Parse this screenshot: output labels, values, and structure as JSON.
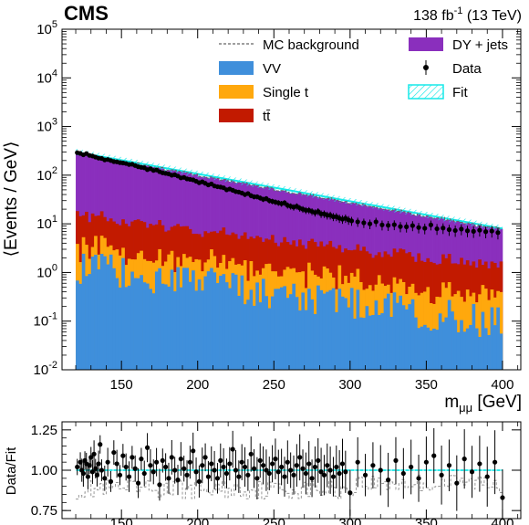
{
  "header": {
    "experiment": "CMS",
    "lumi_prefix": "138 fb",
    "lumi_exp": "-1",
    "lumi_suffix": " (13 TeV)"
  },
  "colors": {
    "dy": "#8a2fbd",
    "ttbar": "#c21a00",
    "single_t": "#ffa80d",
    "vv": "#3f8fdb",
    "fit": "#16e8e8",
    "mc_line": "#666666",
    "data": "#000000"
  },
  "legend": [
    {
      "key": "mc",
      "label": "MC background",
      "style": "dashed-line"
    },
    {
      "key": "dy",
      "label": "DY + jets",
      "style": "fill"
    },
    {
      "key": "vv",
      "label": "VV",
      "style": "fill"
    },
    {
      "key": "data",
      "label": "Data",
      "style": "marker"
    },
    {
      "key": "single_t",
      "label": "Single t",
      "style": "fill"
    },
    {
      "key": "fit",
      "label": "Fit",
      "style": "hatch"
    },
    {
      "key": "ttbar",
      "label": "tt̄",
      "style": "fill"
    }
  ],
  "chart_data": [
    {
      "type": "area",
      "subtype": "stacked-histogram",
      "x_tick_labels": [
        "150",
        "200",
        "250",
        "300",
        "350",
        "400"
      ],
      "y_tick_labels": [
        "10",
        "10",
        "10",
        "10",
        "10",
        "10",
        "10",
        "10"
      ],
      "y_tick_exponents": [
        "-2",
        "-1",
        "0",
        "1",
        "2",
        "3",
        "4",
        "5"
      ],
      "xlabel": "m",
      "xlabel_sub": "μμ",
      "xlabel_unit": " [GeV]",
      "ylabel": "⟨Events / GeV⟩",
      "xlim": [
        111,
        412
      ],
      "ylim": [
        0.01,
        100000
      ],
      "log_y": true,
      "bin_range": [
        120,
        400
      ],
      "bin_width": 2,
      "trends": {
        "dy": {
          "at_120": 270,
          "at_400": 6.2
        },
        "ttbar": {
          "at_120": 11,
          "at_400": 1.0
        },
        "single_t": {
          "at_120": 2.0,
          "at_400": 0.2
        },
        "vv": {
          "at_120": 1.3,
          "at_400": 0.09
        },
        "mc_total": {
          "at_120": 285,
          "at_400": 7.2
        }
      },
      "fit": {
        "x": [
          120,
          400
        ],
        "y": [
          300,
          8
        ]
      },
      "data_points": [
        [
          121,
          290
        ],
        [
          123,
          280
        ],
        [
          125,
          262
        ],
        [
          127,
          278
        ],
        [
          129,
          255
        ],
        [
          131,
          248
        ],
        [
          133,
          235
        ],
        [
          135,
          224
        ],
        [
          137,
          221
        ],
        [
          139,
          206
        ],
        [
          141,
          210
        ],
        [
          143,
          200
        ],
        [
          145,
          190
        ],
        [
          147,
          188
        ],
        [
          149,
          181
        ],
        [
          151,
          178
        ],
        [
          153,
          174
        ],
        [
          155,
          166
        ],
        [
          157,
          168
        ],
        [
          159,
          158
        ],
        [
          161,
          149
        ],
        [
          163,
          145
        ],
        [
          165,
          142
        ],
        [
          167,
          130
        ],
        [
          169,
          136
        ],
        [
          171,
          125
        ],
        [
          173,
          128
        ],
        [
          175,
          118
        ],
        [
          177,
          112
        ],
        [
          179,
          109
        ],
        [
          181,
          106
        ],
        [
          183,
          100
        ],
        [
          185,
          102
        ],
        [
          187,
          96
        ],
        [
          189,
          88
        ],
        [
          191,
          90
        ],
        [
          193,
          84
        ],
        [
          195,
          82
        ],
        [
          197,
          80
        ],
        [
          199,
          75
        ],
        [
          201,
          70
        ],
        [
          203,
          73
        ],
        [
          205,
          68
        ],
        [
          207,
          63
        ],
        [
          209,
          66
        ],
        [
          211,
          60
        ],
        [
          213,
          58
        ],
        [
          215,
          57
        ],
        [
          217,
          55
        ],
        [
          219,
          50
        ],
        [
          221,
          52
        ],
        [
          223,
          49
        ],
        [
          225,
          46
        ],
        [
          227,
          45
        ],
        [
          229,
          43
        ],
        [
          231,
          40
        ],
        [
          233,
          42
        ],
        [
          235,
          38
        ],
        [
          237,
          36
        ],
        [
          239,
          36
        ],
        [
          241,
          34
        ],
        [
          243,
          32
        ],
        [
          245,
          33
        ],
        [
          247,
          30
        ],
        [
          249,
          29
        ],
        [
          251,
          28
        ],
        [
          253,
          27
        ],
        [
          255,
          26
        ],
        [
          257,
          27
        ],
        [
          259,
          24
        ],
        [
          261,
          23
        ],
        [
          263,
          22
        ],
        [
          265,
          23
        ],
        [
          267,
          21
        ],
        [
          269,
          20
        ],
        [
          271,
          19
        ],
        [
          273,
          19
        ],
        [
          275,
          18
        ],
        [
          277,
          17
        ],
        [
          279,
          18
        ],
        [
          281,
          16
        ],
        [
          283,
          16
        ],
        [
          285,
          15
        ],
        [
          287,
          15
        ],
        [
          289,
          14
        ],
        [
          291,
          14
        ],
        [
          293,
          13
        ],
        [
          295,
          12.5
        ],
        [
          297,
          13
        ],
        [
          299,
          12
        ],
        [
          301,
          11.5
        ],
        [
          305,
          11
        ],
        [
          309,
          10.5
        ],
        [
          313,
          10
        ],
        [
          317,
          11
        ],
        [
          321,
          9.5
        ],
        [
          325,
          9.3
        ],
        [
          329,
          9.6
        ],
        [
          333,
          8.8
        ],
        [
          337,
          8.7
        ],
        [
          341,
          9.2
        ],
        [
          345,
          8.4
        ],
        [
          349,
          8.1
        ],
        [
          353,
          9.5
        ],
        [
          357,
          7.9
        ],
        [
          361,
          8.2
        ],
        [
          365,
          7.6
        ],
        [
          369,
          7.3
        ],
        [
          373,
          7.8
        ],
        [
          377,
          7.2
        ],
        [
          381,
          7.0
        ],
        [
          385,
          7.4
        ],
        [
          389,
          6.9
        ],
        [
          393,
          7.1
        ],
        [
          397,
          6.6
        ]
      ]
    },
    {
      "type": "scatter",
      "subtype": "ratio",
      "x_tick_labels": [
        "150",
        "200",
        "250",
        "300",
        "350",
        "400"
      ],
      "y_tick_labels": [
        "0.75",
        "1.00",
        "1.25"
      ],
      "ylabel": "Data/Fit",
      "xlim": [
        111,
        412
      ],
      "ylim": [
        0.7,
        1.3
      ],
      "reference": 1.0,
      "mc_over_fit": {
        "x_start": 120,
        "x_end": 400,
        "center": 0.88,
        "spread": 0.06
      },
      "points": [
        [
          121,
          1.02
        ],
        [
          123,
          1.05
        ],
        [
          124,
          1.0
        ],
        [
          125,
          0.98
        ],
        [
          126,
          1.06
        ],
        [
          127,
          1.04
        ],
        [
          128,
          0.96
        ],
        [
          129,
          1.03
        ],
        [
          130,
          1.08
        ],
        [
          131,
          0.99
        ],
        [
          132,
          1.1
        ],
        [
          133,
          1.01
        ],
        [
          134,
          0.97
        ],
        [
          135,
          1.04
        ],
        [
          136,
          1.16
        ],
        [
          137,
          1.0
        ],
        [
          139,
          0.95
        ],
        [
          141,
          1.05
        ],
        [
          143,
          0.93
        ],
        [
          145,
          1.11
        ],
        [
          147,
          1.04
        ],
        [
          149,
          0.97
        ],
        [
          151,
          1.09
        ],
        [
          153,
          1.02
        ],
        [
          155,
          0.96
        ],
        [
          157,
          1.08
        ],
        [
          159,
          1.01
        ],
        [
          161,
          0.92
        ],
        [
          163,
          1.07
        ],
        [
          165,
          0.98
        ],
        [
          167,
          1.14
        ],
        [
          169,
          1.03
        ],
        [
          171,
          0.99
        ],
        [
          173,
          1.05
        ],
        [
          175,
          0.91
        ],
        [
          177,
          1.06
        ],
        [
          179,
          1.02
        ],
        [
          181,
          0.95
        ],
        [
          183,
          1.08
        ],
        [
          185,
          1.0
        ],
        [
          187,
          0.94
        ],
        [
          189,
          1.07
        ],
        [
          191,
          1.01
        ],
        [
          193,
          0.97
        ],
        [
          195,
          1.05
        ],
        [
          197,
          1.12
        ],
        [
          199,
          0.99
        ],
        [
          201,
          0.93
        ],
        [
          203,
          1.03
        ],
        [
          205,
          1.08
        ],
        [
          207,
          0.96
        ],
        [
          209,
          1.04
        ],
        [
          211,
          1.0
        ],
        [
          213,
          0.95
        ],
        [
          215,
          1.06
        ],
        [
          217,
          1.02
        ],
        [
          219,
          0.98
        ],
        [
          221,
          1.04
        ],
        [
          223,
          1.13
        ],
        [
          225,
          1.0
        ],
        [
          227,
          0.96
        ],
        [
          229,
          1.05
        ],
        [
          231,
          1.02
        ],
        [
          233,
          0.97
        ],
        [
          235,
          1.1
        ],
        [
          237,
          1.01
        ],
        [
          239,
          0.95
        ],
        [
          241,
          1.06
        ],
        [
          243,
          1.03
        ],
        [
          245,
          1.0
        ],
        [
          247,
          0.98
        ],
        [
          249,
          1.04
        ],
        [
          251,
          1.07
        ],
        [
          253,
          0.99
        ],
        [
          255,
          1.02
        ],
        [
          257,
          0.96
        ],
        [
          259,
          1.05
        ],
        [
          261,
          1.0
        ],
        [
          263,
          0.97
        ],
        [
          265,
          1.03
        ],
        [
          267,
          1.08
        ],
        [
          269,
          1.01
        ],
        [
          271,
          0.98
        ],
        [
          273,
          1.04
        ],
        [
          275,
          0.95
        ],
        [
          277,
          1.02
        ],
        [
          279,
          1.06
        ],
        [
          281,
          0.99
        ],
        [
          283,
          0.97
        ],
        [
          285,
          1.03
        ],
        [
          287,
          1.0
        ],
        [
          289,
          0.96
        ],
        [
          291,
          1.02
        ],
        [
          293,
          0.98
        ],
        [
          295,
          1.04
        ],
        [
          297,
          0.99
        ],
        [
          300,
          0.86
        ],
        [
          305,
          1.05
        ],
        [
          310,
          0.97
        ],
        [
          315,
          1.03
        ],
        [
          320,
          1.0
        ],
        [
          325,
          0.94
        ],
        [
          330,
          1.06
        ],
        [
          335,
          0.98
        ],
        [
          340,
          1.02
        ],
        [
          345,
          0.95
        ],
        [
          350,
          1.05
        ],
        [
          355,
          1.09
        ],
        [
          360,
          0.97
        ],
        [
          365,
          1.03
        ],
        [
          370,
          0.92
        ],
        [
          375,
          1.07
        ],
        [
          380,
          0.99
        ],
        [
          385,
          1.04
        ],
        [
          390,
          0.96
        ],
        [
          395,
          1.05
        ],
        [
          400,
          0.83
        ]
      ]
    }
  ]
}
